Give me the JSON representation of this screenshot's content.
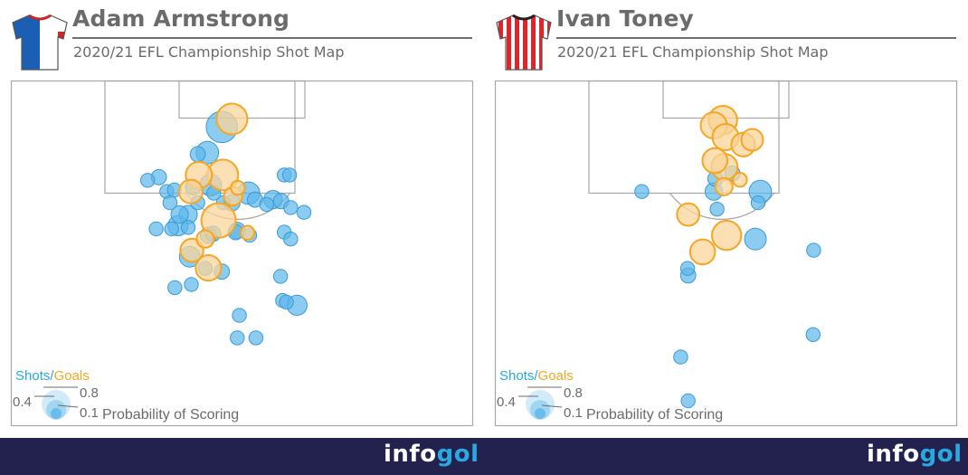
{
  "panels": [
    {
      "player": "Adam Armstrong",
      "subtitle": "2020/21 EFL Championship Shot Map",
      "shirt": {
        "style": "halves",
        "primary": "#1a5fb4",
        "secondary": "#ffffff",
        "trim": "#c62828"
      }
    },
    {
      "player": "Ivan Toney",
      "subtitle": "2020/21 EFL Championship Shot Map",
      "shirt": {
        "style": "stripes",
        "primary": "#e0262c",
        "secondary": "#ffffff",
        "trim": "#222222"
      }
    }
  ],
  "legend": {
    "shots": "Shots",
    "separator": "/",
    "goals": "Goals",
    "size_high": "0.8",
    "size_mid": "0.4",
    "size_low": "0.1",
    "caption": "Probability of Scoring"
  },
  "footer": {
    "logo_a": "info",
    "logo_b": "gol"
  },
  "colors": {
    "shot": "#5bb7ea",
    "shot_stroke": "#3a9ad6",
    "goal": "#fbd49a",
    "goal_stroke": "#f5a623",
    "pitch_line": "#a6a6a6",
    "footer": "#23214d"
  },
  "chart_data": [
    {
      "type": "scatter",
      "series": [
        {
          "name": "Shots",
          "points": [
            {
              "x": -3.7,
              "y": 8.7,
              "xg": 0.28
            },
            {
              "x": -6.4,
              "y": 13.5,
              "xg": 0.12
            },
            {
              "x": -8.2,
              "y": 13.8,
              "xg": 0.04
            },
            {
              "x": -17.6,
              "y": 18.7,
              "xg": 0.03
            },
            {
              "x": -15.5,
              "y": 18.1,
              "xg": 0.04
            },
            {
              "x": -14.0,
              "y": 20.8,
              "xg": 0.03
            },
            {
              "x": -13.4,
              "y": 22.9,
              "xg": 0.03
            },
            {
              "x": -12.6,
              "y": 20.5,
              "xg": 0.03
            },
            {
              "x": -9.1,
              "y": 20.0,
              "xg": 0.04
            },
            {
              "x": -8.2,
              "y": 22.9,
              "xg": 0.03
            },
            {
              "x": -11.6,
              "y": 25.1,
              "xg": 0.06
            },
            {
              "x": -10.0,
              "y": 25.1,
              "xg": 0.07
            },
            {
              "x": -11.9,
              "y": 27.2,
              "xg": 0.09
            },
            {
              "x": -16.0,
              "y": 27.8,
              "xg": 0.03
            },
            {
              "x": -13.1,
              "y": 27.8,
              "xg": 0.03
            },
            {
              "x": -10.0,
              "y": 27.5,
              "xg": 0.03
            },
            {
              "x": -5.2,
              "y": 21.1,
              "xg": 0.03
            },
            {
              "x": -3.4,
              "y": 22.9,
              "xg": 0.03
            },
            {
              "x": -1.8,
              "y": 22.9,
              "xg": 0.05
            },
            {
              "x": 1.3,
              "y": 21.1,
              "xg": 0.12
            },
            {
              "x": 2.5,
              "y": 22.3,
              "xg": 0.04
            },
            {
              "x": 4.7,
              "y": 23.2,
              "xg": 0.03
            },
            {
              "x": 5.9,
              "y": 22.3,
              "xg": 0.07
            },
            {
              "x": 7.4,
              "y": 22.6,
              "xg": 0.04
            },
            {
              "x": 9.2,
              "y": 23.8,
              "xg": 0.03
            },
            {
              "x": 8.0,
              "y": 17.7,
              "xg": 0.03
            },
            {
              "x": 9.0,
              "y": 17.7,
              "xg": 0.03
            },
            {
              "x": 11.7,
              "y": 24.7,
              "xg": 0.03
            },
            {
              "x": 8.0,
              "y": 28.4,
              "xg": 0.03
            },
            {
              "x": 9.2,
              "y": 29.7,
              "xg": 0.03
            },
            {
              "x": -6.2,
              "y": 29.0,
              "xg": 0.05
            },
            {
              "x": -5.3,
              "y": 28.7,
              "xg": 0.04
            },
            {
              "x": -1.1,
              "y": 28.4,
              "xg": 0.04
            },
            {
              "x": -0.8,
              "y": 28.1,
              "xg": 0.05
            },
            {
              "x": 1.5,
              "y": 29.0,
              "xg": 0.03
            },
            {
              "x": -9.7,
              "y": 33.0,
              "xg": 0.1
            },
            {
              "x": -6.8,
              "y": 35.2,
              "xg": 0.03
            },
            {
              "x": -3.7,
              "y": 35.8,
              "xg": 0.04
            },
            {
              "x": -9.4,
              "y": 38.2,
              "xg": 0.03
            },
            {
              "x": -12.5,
              "y": 38.8,
              "xg": 0.03
            },
            {
              "x": 7.3,
              "y": 36.7,
              "xg": 0.03
            },
            {
              "x": 7.7,
              "y": 41.2,
              "xg": 0.03
            },
            {
              "x": 8.4,
              "y": 41.5,
              "xg": 0.03
            },
            {
              "x": 10.4,
              "y": 42.1,
              "xg": 0.09
            },
            {
              "x": -0.4,
              "y": 44.0,
              "xg": 0.03
            },
            {
              "x": -0.8,
              "y": 48.2,
              "xg": 0.03
            },
            {
              "x": 2.7,
              "y": 48.2,
              "xg": 0.03
            },
            {
              "x": -5.8,
              "y": 19.6,
              "xg": 0.11
            }
          ]
        },
        {
          "name": "Goals",
          "points": [
            {
              "x": -1.8,
              "y": 7.2,
              "xg": 0.27
            },
            {
              "x": -8.0,
              "y": 17.7,
              "xg": 0.18
            },
            {
              "x": -9.5,
              "y": 20.8,
              "xg": 0.14
            },
            {
              "x": -3.5,
              "y": 17.7,
              "xg": 0.27
            },
            {
              "x": -1.6,
              "y": 21.7,
              "xg": 0.07
            },
            {
              "x": -0.7,
              "y": 20.1,
              "xg": 0.03
            },
            {
              "x": -4.3,
              "y": 26.2,
              "xg": 0.35
            },
            {
              "x": -9.3,
              "y": 31.8,
              "xg": 0.13
            },
            {
              "x": 1.1,
              "y": 28.5,
              "xg": 0.03
            },
            {
              "x": -6.2,
              "y": 35.1,
              "xg": 0.17
            },
            {
              "x": -6.8,
              "y": 29.7,
              "xg": 0.06
            }
          ]
        }
      ]
    },
    {
      "type": "scatter",
      "series": [
        {
          "name": "Shots",
          "points": [
            {
              "x": -15.7,
              "y": 20.8,
              "xg": 0.03
            },
            {
              "x": -1.9,
              "y": 18.4,
              "xg": 0.04
            },
            {
              "x": -2.2,
              "y": 20.8,
              "xg": 0.06
            },
            {
              "x": 1.3,
              "y": 17.4,
              "xg": 0.04
            },
            {
              "x": 6.5,
              "y": 20.8,
              "xg": 0.12
            },
            {
              "x": 6.1,
              "y": 22.9,
              "xg": 0.03
            },
            {
              "x": 5.6,
              "y": 29.7,
              "xg": 0.11
            },
            {
              "x": -1.6,
              "y": 24.1,
              "xg": 0.03
            },
            {
              "x": -7.1,
              "y": 35.2,
              "xg": 0.03
            },
            {
              "x": -7.0,
              "y": 36.5,
              "xg": 0.04
            },
            {
              "x": -8.4,
              "y": 51.8,
              "xg": 0.03
            },
            {
              "x": -7.0,
              "y": 60.0,
              "xg": 0.03
            },
            {
              "x": 16.5,
              "y": 31.8,
              "xg": 0.03
            },
            {
              "x": 16.4,
              "y": 47.6,
              "xg": 0.03
            }
          ]
        },
        {
          "name": "Goals",
          "points": [
            {
              "x": -2.2,
              "y": 8.4,
              "xg": 0.18
            },
            {
              "x": -0.5,
              "y": 7.4,
              "xg": 0.22
            },
            {
              "x": 0.0,
              "y": 10.6,
              "xg": 0.18
            },
            {
              "x": 3.3,
              "y": 12.0,
              "xg": 0.14
            },
            {
              "x": 5.0,
              "y": 11.1,
              "xg": 0.11
            },
            {
              "x": -2.0,
              "y": 15.0,
              "xg": 0.16
            },
            {
              "x": -0.2,
              "y": 16.2,
              "xg": 0.18
            },
            {
              "x": 2.7,
              "y": 18.6,
              "xg": 0.03
            },
            {
              "x": -0.3,
              "y": 19.9,
              "xg": 0.06
            },
            {
              "x": -7.0,
              "y": 25.1,
              "xg": 0.12
            },
            {
              "x": 0.2,
              "y": 29.0,
              "xg": 0.24
            },
            {
              "x": -4.3,
              "y": 32.1,
              "xg": 0.16
            }
          ]
        }
      ]
    }
  ]
}
